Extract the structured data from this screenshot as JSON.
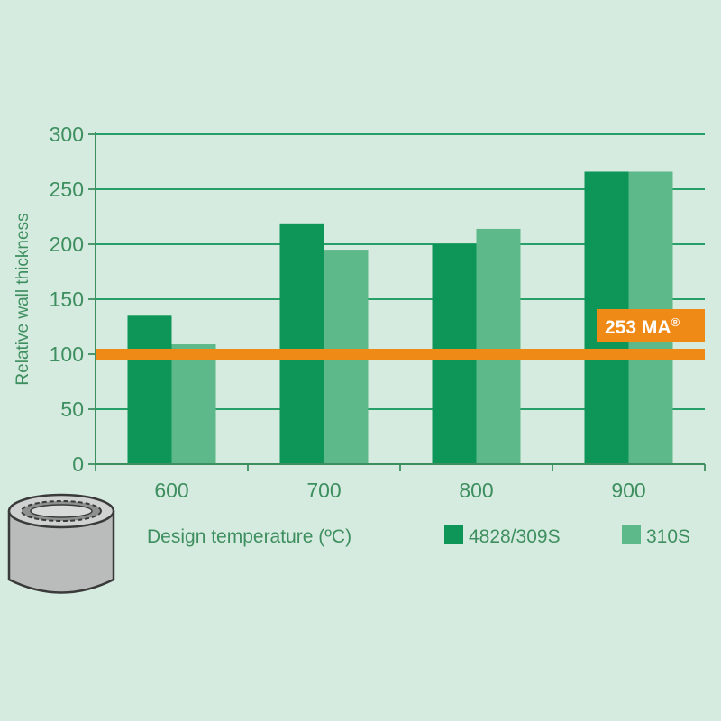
{
  "chart_data": {
    "type": "bar",
    "title": "",
    "xlabel": "Design temperature (ºC)",
    "ylabel": "Relative wall thickness",
    "categories": [
      "600",
      "700",
      "800",
      "900"
    ],
    "series": [
      {
        "name": "4828/309S",
        "values": [
          135,
          219,
          200,
          266
        ],
        "color": "#0d9657"
      },
      {
        "name": "310S",
        "values": [
          109,
          195,
          214,
          266
        ],
        "color": "#5db98a"
      }
    ],
    "ylim": [
      0,
      300
    ],
    "yticks": [
      0,
      50,
      100,
      150,
      200,
      250,
      300
    ],
    "grid": true,
    "reference_line": {
      "value": 100,
      "label": "253 MA",
      "label_sup": "®",
      "color": "#f08a16"
    },
    "legend": "bottom-right",
    "colors": {
      "axis": "#3e8f60",
      "grid": "#0d9657",
      "background": "#d6ebdf"
    }
  }
}
